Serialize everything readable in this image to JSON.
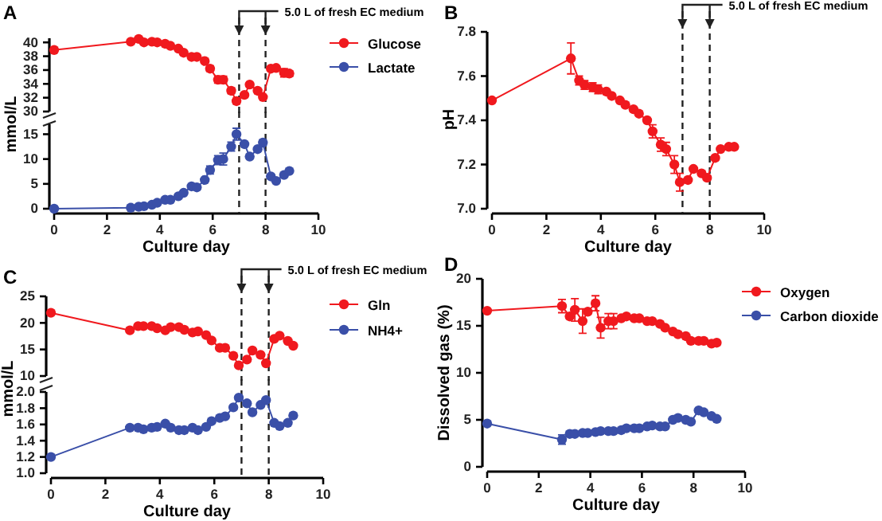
{
  "chart_data": [
    {
      "type": "line",
      "title": "A",
      "annotations": [
        "5.0 L of fresh EC medium"
      ],
      "x": [
        0,
        2.9,
        3.2,
        3.4,
        3.7,
        3.9,
        4.2,
        4.4,
        4.7,
        4.9,
        5.2,
        5.4,
        5.7,
        5.9,
        6.2,
        6.4,
        6.7,
        6.9,
        7.2,
        7.4,
        7.7,
        7.9,
        8.2,
        8.4,
        8.7,
        8.9
      ],
      "xlim": [
        0,
        10
      ],
      "ylim": [
        30,
        40.6
      ],
      "yticks": [
        30,
        32,
        34,
        36,
        38,
        40
      ],
      "tick_labels": "y",
      "legend": "right",
      "marker": "circle",
      "ref_lines": [
        {
          "axis": "x",
          "value": 7,
          "line_style": "dashed"
        },
        {
          "axis": "x",
          "value": 8,
          "line_style": "dashed"
        }
      ],
      "series": [
        {
          "name": "Glucose",
          "color": "#f0191e",
          "values": [
            38.9,
            40.1,
            40.5,
            40,
            40.1,
            40,
            39.8,
            39.5,
            39.1,
            38.5,
            37.9,
            37.9,
            37.3,
            36.2,
            34.6,
            34.6,
            33,
            31.5,
            32.4,
            33.9,
            33,
            32.1,
            36.2,
            36.3,
            35.6,
            35.5
          ],
          "errors": [
            null,
            null,
            null,
            null,
            null,
            null,
            null,
            null,
            null,
            null,
            null,
            null,
            null,
            0.4,
            0.5,
            0.5,
            0.4,
            0.4,
            null,
            null,
            null,
            null,
            null,
            null,
            0.6,
            0.4
          ]
        }
      ]
    },
    {
      "type": "line",
      "xlabel": "Culture day",
      "ylabel": "mmol/L",
      "x": [
        0,
        2.9,
        3.2,
        3.4,
        3.7,
        3.9,
        4.2,
        4.4,
        4.7,
        4.9,
        5.2,
        5.4,
        5.7,
        5.9,
        6.2,
        6.4,
        6.7,
        6.9,
        7.2,
        7.4,
        7.7,
        7.9,
        8.2,
        8.4,
        8.7,
        8.9
      ],
      "xlim": [
        0,
        10
      ],
      "xticks": [
        0,
        2,
        4,
        6,
        8,
        10
      ],
      "ylim": [
        0,
        17
      ],
      "yticks": [
        0,
        5,
        10,
        15
      ],
      "legend": "right",
      "marker": "circle",
      "ref_lines": [
        {
          "axis": "x",
          "value": 7,
          "line_style": "dashed"
        },
        {
          "axis": "x",
          "value": 8,
          "line_style": "dashed"
        }
      ],
      "series": [
        {
          "name": "Lactate",
          "color": "#3a4fa8",
          "values": [
            0,
            0.2,
            0.4,
            0.5,
            0.8,
            1.2,
            1.8,
            1.8,
            2.5,
            3.2,
            4.5,
            4.3,
            5.8,
            7.8,
            9.8,
            10,
            12.5,
            15,
            13,
            10.5,
            12,
            13.3,
            6.5,
            5.6,
            6.8,
            7.6
          ],
          "errors": [
            null,
            null,
            null,
            null,
            null,
            null,
            null,
            null,
            null,
            null,
            null,
            null,
            null,
            0.8,
            0.9,
            1.2,
            0.9,
            1.2,
            null,
            null,
            null,
            0.6,
            null,
            null,
            null,
            null
          ]
        }
      ]
    },
    {
      "type": "line",
      "title": "B",
      "xlabel": "Culture day",
      "ylabel": "pH",
      "annotations": [
        "5.0 L of fresh EC medium"
      ],
      "x": [
        0,
        2.9,
        3.2,
        3.4,
        3.7,
        3.9,
        4.2,
        4.4,
        4.7,
        4.9,
        5.2,
        5.4,
        5.7,
        5.9,
        6.2,
        6.4,
        6.7,
        6.9,
        7.2,
        7.4,
        7.7,
        7.9,
        8.2,
        8.4,
        8.7,
        8.9
      ],
      "xlim": [
        0,
        10
      ],
      "xticks": [
        0,
        2,
        4,
        6,
        8,
        10
      ],
      "ylim": [
        7.0,
        7.8
      ],
      "yticks": [
        {
          "value": 7.0,
          "label": "7.0"
        },
        7.2,
        7.4,
        7.6,
        7.8
      ],
      "marker": "circle",
      "ref_lines": [
        {
          "axis": "x",
          "value": 7,
          "line_style": "dashed"
        },
        {
          "axis": "x",
          "value": 8,
          "line_style": "dashed"
        }
      ],
      "series": [
        {
          "color": "#f0191e",
          "values": [
            7.49,
            7.68,
            7.58,
            7.56,
            7.55,
            7.54,
            7.53,
            7.51,
            7.49,
            7.47,
            7.45,
            7.43,
            7.4,
            7.35,
            7.29,
            7.27,
            7.2,
            7.12,
            7.13,
            7.18,
            7.16,
            7.14,
            7.23,
            7.27,
            7.28,
            7.28
          ],
          "errors": [
            null,
            0.07,
            0.02,
            0.02,
            0.02,
            0.02,
            null,
            null,
            null,
            null,
            null,
            null,
            null,
            0.03,
            0.03,
            0.03,
            0.04,
            0.04,
            null,
            null,
            null,
            null,
            null,
            null,
            null,
            null
          ]
        }
      ]
    },
    {
      "type": "line",
      "title": "C",
      "annotations": [
        "5.0 L of fresh EC medium"
      ],
      "x": [
        0,
        2.9,
        3.2,
        3.4,
        3.7,
        3.9,
        4.2,
        4.4,
        4.7,
        4.9,
        5.2,
        5.4,
        5.7,
        5.9,
        6.2,
        6.4,
        6.7,
        6.9,
        7.2,
        7.4,
        7.7,
        7.9,
        8.2,
        8.4,
        8.7,
        8.9
      ],
      "xlim": [
        0,
        10
      ],
      "ylim": [
        10,
        25
      ],
      "yticks": [
        10,
        15,
        20,
        25
      ],
      "tick_labels": "y",
      "legend": "right",
      "marker": "circle",
      "ref_lines": [
        {
          "axis": "x",
          "value": 7,
          "line_style": "dashed"
        },
        {
          "axis": "x",
          "value": 8,
          "line_style": "dashed"
        }
      ],
      "series": [
        {
          "name": "Gln",
          "color": "#f0191e",
          "values": [
            21.9,
            18.6,
            19.4,
            19.4,
            19.4,
            19,
            18.6,
            19.2,
            19.2,
            18.7,
            18.2,
            18.4,
            17.7,
            16.7,
            15.3,
            15.3,
            13.8,
            12,
            13.1,
            14.8,
            14,
            12.4,
            17,
            17.6,
            16.6,
            15.7
          ]
        }
      ]
    },
    {
      "type": "line",
      "xlabel": "Culture day",
      "ylabel": "mmol/L",
      "x": [
        0,
        2.9,
        3.2,
        3.4,
        3.7,
        3.9,
        4.2,
        4.4,
        4.7,
        4.9,
        5.2,
        5.4,
        5.7,
        5.9,
        6.2,
        6.4,
        6.7,
        6.9,
        7.2,
        7.4,
        7.7,
        7.9,
        8.2,
        8.4,
        8.7,
        8.9
      ],
      "xlim": [
        0,
        10
      ],
      "xticks": [
        0,
        2,
        4,
        6,
        8,
        10
      ],
      "ylim": [
        1.0,
        2.0
      ],
      "yticks": [
        {
          "value": 1.0,
          "label": "1.0"
        },
        1.2,
        1.4,
        1.6,
        1.8,
        {
          "value": 2.0,
          "label": "2.0"
        }
      ],
      "legend": "right",
      "marker": "circle",
      "ref_lines": [
        {
          "axis": "x",
          "value": 7,
          "line_style": "dashed"
        },
        {
          "axis": "x",
          "value": 8,
          "line_style": "dashed"
        }
      ],
      "series": [
        {
          "name": "NH4+",
          "color": "#3a4fa8",
          "values": [
            1.2,
            1.56,
            1.56,
            1.54,
            1.56,
            1.57,
            1.61,
            1.56,
            1.53,
            1.53,
            1.56,
            1.53,
            1.57,
            1.64,
            1.68,
            1.7,
            1.81,
            1.93,
            1.86,
            1.75,
            1.84,
            1.9,
            1.62,
            1.58,
            1.62,
            1.71
          ]
        }
      ]
    },
    {
      "type": "line",
      "title": "D",
      "xlabel": "Culture day",
      "ylabel": "Dissolved gas (%)",
      "x": [
        0,
        2.9,
        3.2,
        3.4,
        3.7,
        3.9,
        4.2,
        4.4,
        4.7,
        4.9,
        5.2,
        5.4,
        5.7,
        5.9,
        6.2,
        6.4,
        6.7,
        6.9,
        7.2,
        7.4,
        7.7,
        7.9,
        8.2,
        8.4,
        8.7,
        8.9
      ],
      "xlim": [
        0,
        10
      ],
      "xticks": [
        0,
        2,
        4,
        6,
        8,
        10
      ],
      "ylim": [
        0,
        20
      ],
      "yticks": [
        0,
        5,
        10,
        15,
        20
      ],
      "legend": "right",
      "marker": "circle",
      "series": [
        {
          "name": "Oxygen",
          "color": "#f0191e",
          "values": [
            16.6,
            17.1,
            16,
            16.7,
            15.5,
            16.5,
            17.4,
            14.8,
            15.5,
            15.5,
            15.8,
            16,
            15.8,
            15.8,
            15.5,
            15.5,
            15.2,
            14.8,
            14.4,
            14.1,
            13.9,
            13.4,
            13.4,
            13.4,
            13.1,
            13.2
          ],
          "errors": [
            null,
            0.7,
            null,
            1.2,
            1.3,
            null,
            0.8,
            1.1,
            0.8,
            0.8,
            null,
            null,
            null,
            null,
            null,
            null,
            null,
            null,
            null,
            null,
            null,
            null,
            null,
            null,
            null,
            null
          ]
        },
        {
          "name": "Carbon dioxide",
          "color": "#3a4fa8",
          "values": [
            4.6,
            2.9,
            3.5,
            3.5,
            3.6,
            3.6,
            3.7,
            3.8,
            3.8,
            3.8,
            3.9,
            4.1,
            4.1,
            4.1,
            4.3,
            4.4,
            4.3,
            4.3,
            5,
            5.2,
            5,
            4.8,
            6,
            5.8,
            5.4,
            5.1
          ],
          "errors": [
            null,
            0.5,
            null,
            null,
            null,
            null,
            null,
            null,
            null,
            null,
            null,
            null,
            null,
            null,
            null,
            null,
            null,
            null,
            null,
            null,
            null,
            null,
            null,
            null,
            null,
            null
          ]
        }
      ]
    }
  ]
}
